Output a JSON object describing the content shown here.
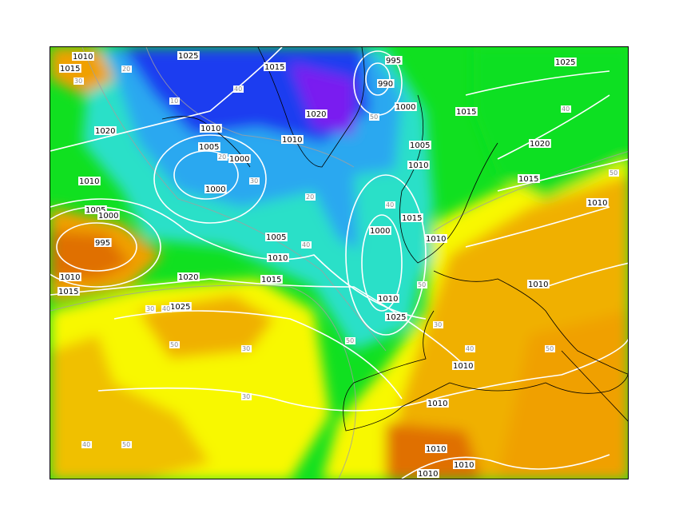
{
  "colors": {
    "purple": "#7a1cf0",
    "blue": "#1a3cf0",
    "light_blue": "#2aa8f0",
    "cyan": "#2ae0c8",
    "green": "#10e020",
    "light_green": "#80f000",
    "yellow": "#f8f800",
    "gold": "#f0c000",
    "orange": "#f0a000",
    "dark_orange": "#e07000",
    "isobar": "#ffffff",
    "thickness_line": "#a0a0a0",
    "coastline": "#000000"
  },
  "pressure_labels": [
    "1010",
    "1015",
    "1025",
    "1015",
    "995",
    "990",
    "1020",
    "1000",
    "1010",
    "1020",
    "1010",
    "1005",
    "1000",
    "1000",
    "1010",
    "1005",
    "1000",
    "995",
    "1010",
    "1015",
    "1005",
    "1010",
    "1015",
    "1020",
    "1025",
    "1005",
    "1010",
    "1015",
    "1010",
    "1010",
    "1025",
    "1015",
    "1025",
    "1020",
    "1015",
    "1010",
    "1010",
    "1010",
    "1010",
    "1010",
    "1010",
    "1000",
    "1010"
  ],
  "thickness_labels": [
    "30",
    "20",
    "10",
    "40",
    "50",
    "30",
    "40",
    "50",
    "30",
    "40",
    "50",
    "20",
    "30",
    "40",
    "50",
    "30",
    "40",
    "50",
    "40",
    "50",
    "30",
    "20",
    "40",
    "50"
  ]
}
